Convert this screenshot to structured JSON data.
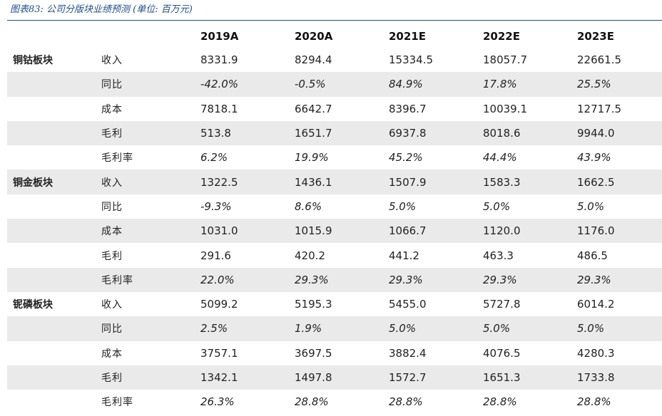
{
  "caption": "图表83: 公司分版块业绩预测 (单位: 百万元)",
  "header": {
    "blank1": "",
    "blank2": "",
    "years": [
      "2019A",
      "2020A",
      "2021E",
      "2022E",
      "2023E"
    ]
  },
  "rows": [
    {
      "segment": "铜钴板块",
      "metric": "收入",
      "italic": false,
      "shade": false,
      "values": [
        "8331.9",
        "8294.4",
        "15334.5",
        "18057.7",
        "22661.5"
      ]
    },
    {
      "segment": "",
      "metric": "同比",
      "italic": true,
      "shade": true,
      "values": [
        "-42.0%",
        "-0.5%",
        "84.9%",
        "17.8%",
        "25.5%"
      ]
    },
    {
      "segment": "",
      "metric": "成本",
      "italic": false,
      "shade": false,
      "values": [
        "7818.1",
        "6642.7",
        "8396.7",
        "10039.1",
        "12717.5"
      ]
    },
    {
      "segment": "",
      "metric": "毛利",
      "italic": false,
      "shade": true,
      "values": [
        "513.8",
        "1651.7",
        "6937.8",
        "8018.6",
        "9944.0"
      ]
    },
    {
      "segment": "",
      "metric": "毛利率",
      "italic": true,
      "shade": false,
      "values": [
        "6.2%",
        "19.9%",
        "45.2%",
        "44.4%",
        "43.9%"
      ]
    },
    {
      "segment": "铜金板块",
      "metric": "收入",
      "italic": false,
      "shade": true,
      "values": [
        "1322.5",
        "1436.1",
        "1507.9",
        "1583.3",
        "1662.5"
      ]
    },
    {
      "segment": "",
      "metric": "同比",
      "italic": true,
      "shade": false,
      "values": [
        "-9.3%",
        "8.6%",
        "5.0%",
        "5.0%",
        "5.0%"
      ]
    },
    {
      "segment": "",
      "metric": "成本",
      "italic": false,
      "shade": true,
      "values": [
        "1031.0",
        "1015.9",
        "1066.7",
        "1120.0",
        "1176.0"
      ]
    },
    {
      "segment": "",
      "metric": "毛利",
      "italic": false,
      "shade": false,
      "values": [
        "291.6",
        "420.2",
        "441.2",
        "463.3",
        "486.5"
      ]
    },
    {
      "segment": "",
      "metric": "毛利率",
      "italic": true,
      "shade": true,
      "values": [
        "22.0%",
        "29.3%",
        "29.3%",
        "29.3%",
        "29.3%"
      ]
    },
    {
      "segment": "铌磷板块",
      "metric": "收入",
      "italic": false,
      "shade": false,
      "values": [
        "5099.2",
        "5195.3",
        "5455.0",
        "5727.8",
        "6014.2"
      ]
    },
    {
      "segment": "",
      "metric": "同比",
      "italic": true,
      "shade": true,
      "values": [
        "2.5%",
        "1.9%",
        "5.0%",
        "5.0%",
        "5.0%"
      ]
    },
    {
      "segment": "",
      "metric": "成本",
      "italic": false,
      "shade": false,
      "values": [
        "3757.1",
        "3697.5",
        "3882.4",
        "4076.5",
        "4280.3"
      ]
    },
    {
      "segment": "",
      "metric": "毛利",
      "italic": false,
      "shade": true,
      "values": [
        "1342.1",
        "1497.8",
        "1572.7",
        "1651.3",
        "1733.8"
      ]
    },
    {
      "segment": "",
      "metric": "毛利率",
      "italic": true,
      "shade": false,
      "values": [
        "26.3%",
        "28.8%",
        "28.8%",
        "28.8%",
        "28.8%"
      ]
    }
  ],
  "colors": {
    "caption": "#1f4e8c",
    "rule": "#1f4e8c",
    "shade": "#eaeaea"
  }
}
